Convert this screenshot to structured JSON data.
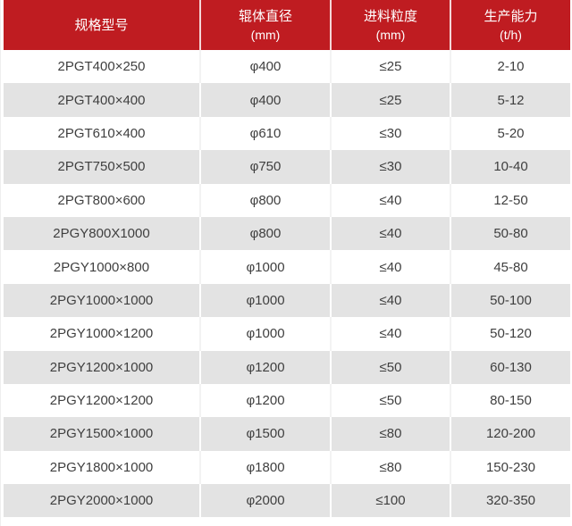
{
  "table": {
    "columns": [
      {
        "label": "规格型号",
        "sub": ""
      },
      {
        "label": "辊体直径",
        "sub": "(mm)"
      },
      {
        "label": "进料粒度",
        "sub": "(mm)"
      },
      {
        "label": "生产能力",
        "sub": "(t/h)"
      }
    ],
    "rows": [
      [
        "2PGT400×250",
        "φ400",
        "≤25",
        "2-10"
      ],
      [
        "2PGT400×400",
        "φ400",
        "≤25",
        "5-12"
      ],
      [
        "2PGT610×400",
        "φ610",
        "≤30",
        "5-20"
      ],
      [
        "2PGT750×500",
        "φ750",
        "≤30",
        "10-40"
      ],
      [
        "2PGT800×600",
        "φ800",
        "≤40",
        "12-50"
      ],
      [
        "2PGY800X1000",
        "φ800",
        "≤40",
        "50-80"
      ],
      [
        "2PGY1000×800",
        "φ1000",
        "≤40",
        "45-80"
      ],
      [
        "2PGY1000×1000",
        "φ1000",
        "≤40",
        "50-100"
      ],
      [
        "2PGY1000×1200",
        "φ1000",
        "≤40",
        "50-120"
      ],
      [
        "2PGY1200×1000",
        "φ1200",
        "≤50",
        "60-130"
      ],
      [
        "2PGY1200×1200",
        "φ1200",
        "≤50",
        "80-150"
      ],
      [
        "2PGY1500×1000",
        "φ1500",
        "≤80",
        "120-200"
      ],
      [
        "2PGY1800×1000",
        "φ1800",
        "≤80",
        "150-230"
      ],
      [
        "2PGY2000×1000",
        "φ2000",
        "≤100",
        "320-350"
      ]
    ],
    "colors": {
      "header_bg": "#bf1c21",
      "header_text": "#ffffff",
      "row_bg": "#ffffff",
      "row_alt_bg": "#e3e3e3",
      "cell_text": "#3f3f3f"
    }
  }
}
